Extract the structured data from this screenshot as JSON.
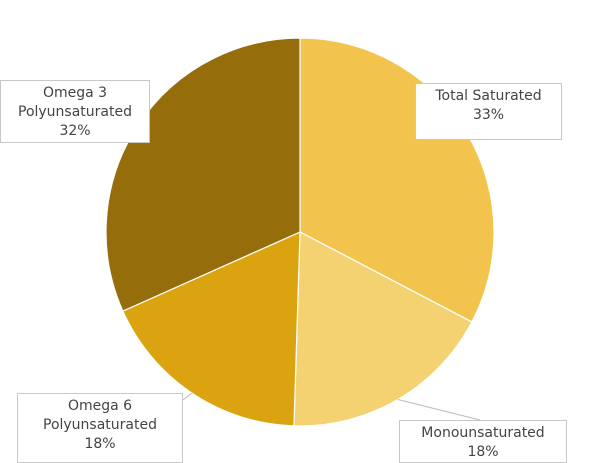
{
  "chart_data": {
    "type": "pie",
    "categories": [
      "Total Saturated",
      "Monounsaturated",
      "Omega 6 Polyunsaturated",
      "Omega 3 Polyunsaturated"
    ],
    "values": [
      33,
      18,
      18,
      32
    ],
    "value_labels": [
      "33%",
      "18%",
      "18%",
      "32%"
    ],
    "colors": [
      "#f2c44e",
      "#f5d271",
      "#dba310",
      "#956d0b"
    ]
  }
}
